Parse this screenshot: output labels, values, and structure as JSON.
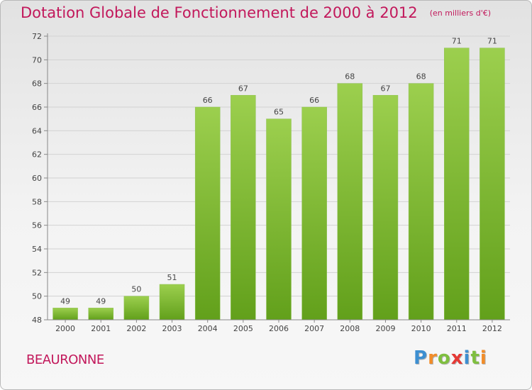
{
  "title": "Dotation Globale de Fonctionnement de 2000 à 2012",
  "subtitle": "(en milliers d'€)",
  "commune": "BEAURONNE",
  "brand": {
    "letters": [
      "P",
      "r",
      "o",
      "x",
      "i",
      "t",
      "i"
    ],
    "colors": [
      "#3d8fd1",
      "#f28c28",
      "#7fbf3f",
      "#e53935",
      "#3d8fd1",
      "#7fbf3f",
      "#f28c28"
    ]
  },
  "chart_data": {
    "type": "bar",
    "categories": [
      "2000",
      "2001",
      "2002",
      "2003",
      "2004",
      "2005",
      "2006",
      "2007",
      "2008",
      "2009",
      "2010",
      "2011",
      "2012"
    ],
    "values": [
      49,
      49,
      50,
      51,
      66,
      67,
      65,
      66,
      68,
      67,
      68,
      71,
      71
    ],
    "ylim": [
      48,
      72
    ],
    "yticks": [
      48,
      50,
      52,
      54,
      56,
      58,
      60,
      62,
      64,
      66,
      68,
      70,
      72
    ],
    "grid": true,
    "data_labels": true,
    "bar_color_top": "#9ccf4e",
    "bar_color_bottom": "#62a01b"
  }
}
